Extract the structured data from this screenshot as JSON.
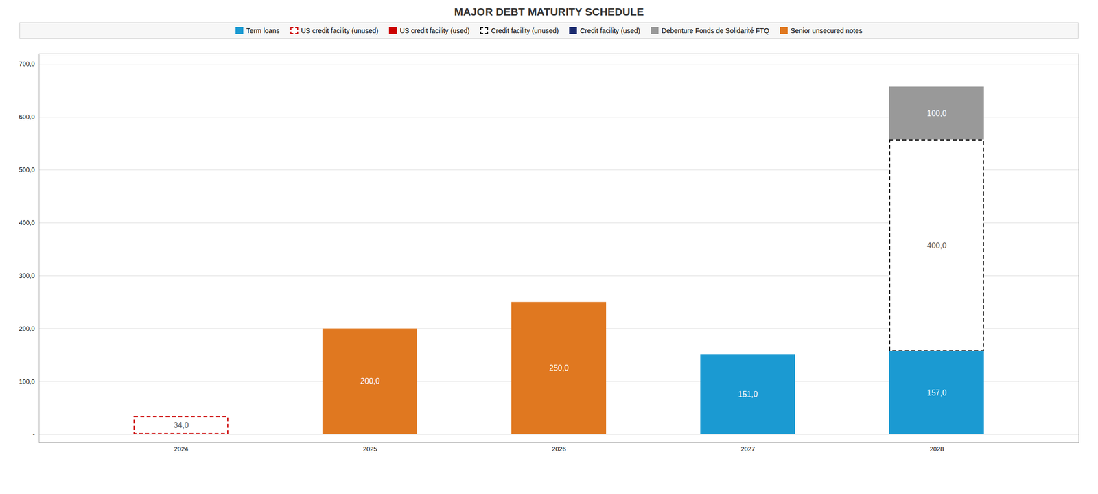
{
  "chart_data": {
    "type": "bar",
    "title": "MAJOR DEBT MATURITY SCHEDULE",
    "stacked": true,
    "data_labels": true,
    "grid": true,
    "categories": [
      "2024",
      "2025",
      "2026",
      "2027",
      "2028"
    ],
    "ylim": [
      -15,
      720
    ],
    "yticks": [
      {
        "value": 0,
        "label": "-"
      },
      {
        "value": 100,
        "label": "100,0"
      },
      {
        "value": 200,
        "label": "200,0"
      },
      {
        "value": 300,
        "label": "300,0"
      },
      {
        "value": 400,
        "label": "400,0"
      },
      {
        "value": 500,
        "label": "500,0"
      },
      {
        "value": 600,
        "label": "600,0"
      },
      {
        "value": 700,
        "label": "700,0"
      }
    ],
    "series": [
      {
        "name": "Term loans",
        "color": "#1B9AD2",
        "line_style": "solid",
        "values": [
          null,
          null,
          null,
          151.0,
          157.0
        ],
        "value_labels": [
          null,
          null,
          null,
          "151,0",
          "157,0"
        ]
      },
      {
        "name": "US credit facility (unused)",
        "color": "#cc0000",
        "line_style": "dashed",
        "values": [
          34.0,
          null,
          null,
          null,
          null
        ],
        "value_labels": [
          "34,0",
          null,
          null,
          null,
          null
        ]
      },
      {
        "name": "US credit facility (used)",
        "color": "#cc0000",
        "line_style": "solid",
        "values": [
          null,
          null,
          null,
          null,
          null
        ],
        "value_labels": [
          null,
          null,
          null,
          null,
          null
        ]
      },
      {
        "name": "Credit facility (unused)",
        "color": "#111111",
        "line_style": "dashed",
        "values": [
          null,
          null,
          null,
          null,
          400.0
        ],
        "value_labels": [
          null,
          null,
          null,
          null,
          "400,0"
        ]
      },
      {
        "name": "Credit facility (used)",
        "color": "#1a2a6e",
        "line_style": "solid",
        "values": [
          null,
          null,
          null,
          null,
          null
        ],
        "value_labels": [
          null,
          null,
          null,
          null,
          null
        ]
      },
      {
        "name": "Debenture Fonds de Solidarité FTQ",
        "color": "#999999",
        "line_style": "solid",
        "values": [
          null,
          null,
          null,
          null,
          100.0
        ],
        "value_labels": [
          null,
          null,
          null,
          null,
          "100,0"
        ]
      },
      {
        "name": "Senior unsecured notes",
        "color": "#E07820",
        "line_style": "solid",
        "values": [
          null,
          200.0,
          250.0,
          null,
          null
        ],
        "value_labels": [
          null,
          "200,0",
          "250,0",
          null,
          null
        ]
      }
    ]
  }
}
